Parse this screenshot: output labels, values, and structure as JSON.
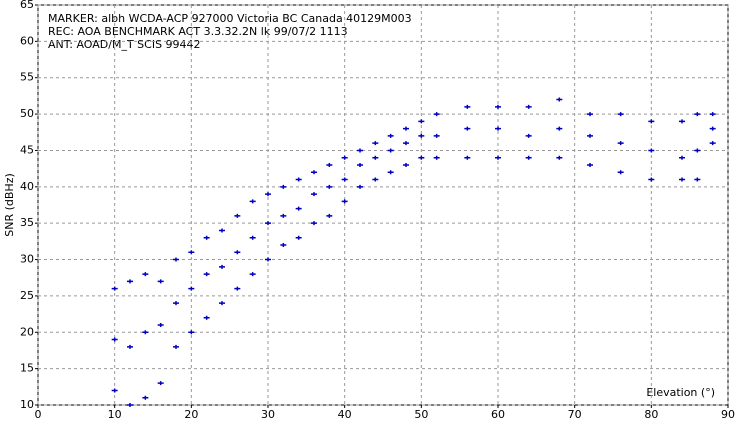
{
  "chart_data": {
    "type": "scatter",
    "annotations": [
      "MARKER: albh  WCDA-ACP   927000   Victoria BC Canada 40129M003",
      "REC: AOA BENCHMARK ACT 3.3.32.2N lk 99/07/2 1113",
      "ANT: AOAD/M_T        SCIS 99442"
    ],
    "xlabel": "Elevation (°)",
    "ylabel": "SNR (dBHz)",
    "x": [
      10,
      10,
      10,
      12,
      12,
      12,
      14,
      14,
      14,
      16,
      16,
      16,
      18,
      18,
      18,
      20,
      20,
      20,
      22,
      22,
      22,
      24,
      24,
      24,
      26,
      26,
      26,
      28,
      28,
      28,
      30,
      30,
      30,
      32,
      32,
      32,
      34,
      34,
      34,
      36,
      36,
      36,
      38,
      38,
      38,
      40,
      40,
      40,
      42,
      42,
      42,
      44,
      44,
      44,
      46,
      46,
      46,
      48,
      48,
      48,
      50,
      50,
      50,
      52,
      52,
      52,
      56,
      56,
      56,
      60,
      60,
      60,
      64,
      64,
      64,
      68,
      68,
      68,
      72,
      72,
      72,
      76,
      76,
      76,
      80,
      80,
      80,
      84,
      84,
      84,
      86,
      86,
      86,
      88,
      88,
      88
    ],
    "values": [
      12,
      19,
      26,
      10,
      18,
      27,
      11,
      20,
      28,
      13,
      21,
      27,
      18,
      24,
      30,
      20,
      26,
      31,
      22,
      28,
      33,
      24,
      29,
      34,
      26,
      31,
      36,
      28,
      33,
      38,
      30,
      35,
      39,
      32,
      36,
      40,
      33,
      37,
      41,
      35,
      39,
      42,
      36,
      40,
      43,
      38,
      41,
      44,
      40,
      43,
      45,
      41,
      44,
      46,
      42,
      45,
      47,
      43,
      46,
      48,
      44,
      47,
      49,
      44,
      47,
      50,
      44,
      48,
      51,
      44,
      48,
      51,
      44,
      47,
      51,
      44,
      48,
      52,
      43,
      47,
      50,
      42,
      46,
      50,
      41,
      45,
      49,
      41,
      44,
      49,
      41,
      45,
      50,
      46,
      48,
      50
    ],
    "color": "#0000c0",
    "xlim": [
      0,
      90
    ],
    "xticks": [
      0,
      10,
      20,
      30,
      40,
      50,
      60,
      70,
      80,
      90
    ],
    "ylim": [
      10,
      65
    ],
    "yticks": [
      10,
      15,
      20,
      25,
      30,
      35,
      40,
      45,
      50,
      55,
      60,
      65
    ],
    "grid": true
  }
}
